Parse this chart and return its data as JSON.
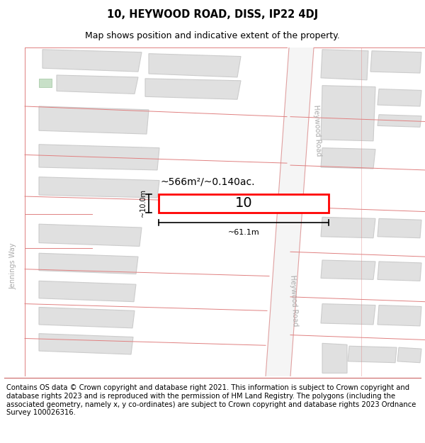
{
  "title": "10, HEYWOOD ROAD, DISS, IP22 4DJ",
  "subtitle": "Map shows position and indicative extent of the property.",
  "footer": "Contains OS data © Crown copyright and database right 2021. This information is subject to Crown copyright and database rights 2023 and is reproduced with the permission of HM Land Registry. The polygons (including the associated geometry, namely x, y co-ordinates) are subject to Crown copyright and database rights 2023 Ordnance Survey 100026316.",
  "map_bg": "#f8f8f8",
  "road_fill": "#ffffff",
  "road_line_color": "#e0a0a0",
  "building_fill": "#e0e0e0",
  "building_edge": "#cccccc",
  "highlight_fill": "#ffffff",
  "highlight_edge": "#ff0000",
  "boundary_color": "#e08080",
  "area_text": "~566m²/~0.140ac.",
  "width_text": "~61.1m",
  "height_text": "~10.0m",
  "property_number": "10",
  "title_fontsize": 10.5,
  "subtitle_fontsize": 9,
  "footer_fontsize": 7.2,
  "road_label_fontsize": 7,
  "road_label_color": "#aaaaaa"
}
